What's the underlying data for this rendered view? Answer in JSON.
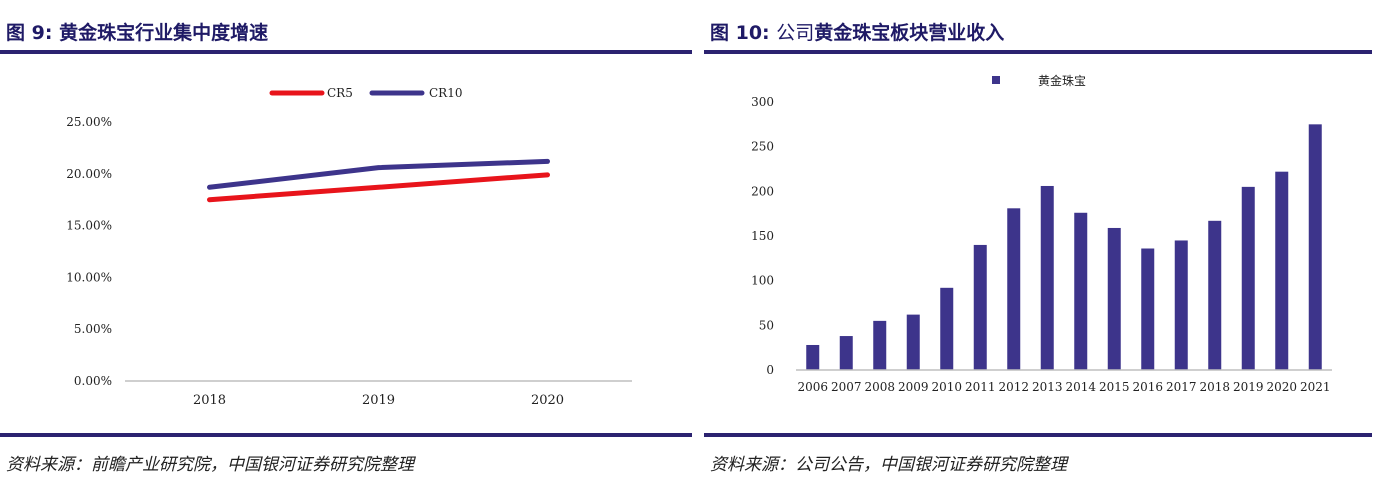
{
  "left": {
    "figure_label": "图 9:",
    "title": "黄金珠宝行业集中度增速",
    "source": "资料来源：前瞻产业研究院，中国银河证券研究院整理"
  },
  "right": {
    "figure_label": "图 10:",
    "title_plain": "公司",
    "title": "黄金珠宝板块营业收入",
    "source": "资料来源：公司公告，中国银河证券研究院整理"
  },
  "colors": {
    "accent": "#2b2270",
    "cr5": "#e8141b",
    "cr10": "#3d348b",
    "bar": "#3d348b",
    "axis": "#bfbfbf"
  },
  "chart_data": [
    {
      "type": "line",
      "title": "黄金珠宝行业集中度增速",
      "categories": [
        "2018",
        "2019",
        "2020"
      ],
      "series": [
        {
          "name": "CR5",
          "values": [
            17.5,
            18.7,
            19.9
          ]
        },
        {
          "name": "CR10",
          "values": [
            18.7,
            20.6,
            21.2
          ]
        }
      ],
      "yticks": [
        "0.00%",
        "5.00%",
        "10.00%",
        "15.00%",
        "20.00%",
        "25.00%"
      ],
      "ylim": [
        0,
        25
      ],
      "ystep": 5,
      "legend": "top"
    },
    {
      "type": "bar",
      "title": "黄金珠宝板块营业收入",
      "categories": [
        "2006",
        "2007",
        "2008",
        "2009",
        "2010",
        "2011",
        "2012",
        "2013",
        "2014",
        "2015",
        "2016",
        "2017",
        "2018",
        "2019",
        "2020",
        "2021"
      ],
      "series": [
        {
          "name": "黄金珠宝",
          "values": [
            28,
            38,
            55,
            62,
            92,
            140,
            181,
            206,
            176,
            159,
            136,
            145,
            167,
            205,
            222,
            275
          ]
        }
      ],
      "yticks": [
        "0",
        "50",
        "100",
        "150",
        "200",
        "250",
        "300"
      ],
      "ylim": [
        0,
        300
      ],
      "ystep": 50,
      "legend": "top"
    }
  ]
}
